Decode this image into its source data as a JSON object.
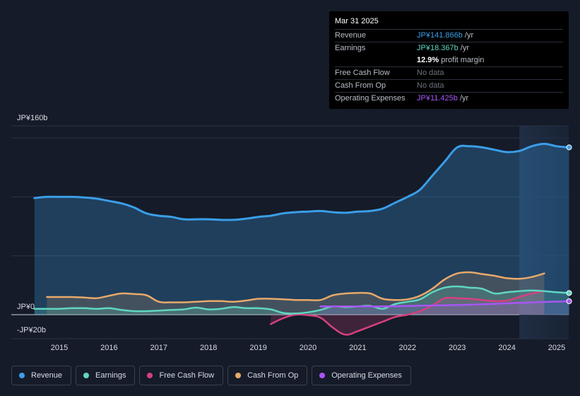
{
  "tooltip": {
    "date": "Mar 31 2025",
    "rows": [
      {
        "label": "Revenue",
        "value": "JP¥141.866b",
        "unit": "/yr",
        "color": "#3b9ee8"
      },
      {
        "label": "Earnings",
        "value": "JP¥18.367b",
        "unit": "/yr",
        "color": "#5fd7c0"
      },
      {
        "label": "",
        "value": "12.9%",
        "unit": "profit margin",
        "color": "#ffffff"
      },
      {
        "label": "Free Cash Flow",
        "value": "No data",
        "unit": "",
        "color": "#6b7280"
      },
      {
        "label": "Cash From Op",
        "value": "No data",
        "unit": "",
        "color": "#6b7280"
      },
      {
        "label": "Operating Expenses",
        "value": "JP¥11.425b",
        "unit": "/yr",
        "color": "#a855f7"
      }
    ]
  },
  "chart_data": {
    "type": "line",
    "title": "",
    "y_tick_labels": {
      "top": "JP¥160b",
      "zero": "JP¥0",
      "bottom": "-JP¥20b"
    },
    "ylim": [
      -20,
      160
    ],
    "xlim": [
      2014.5,
      2025.25
    ],
    "x_ticks": [
      "2015",
      "2016",
      "2017",
      "2018",
      "2019",
      "2020",
      "2021",
      "2022",
      "2023",
      "2024",
      "2025"
    ],
    "highlight_start": 2024.25,
    "series": [
      {
        "name": "Revenue",
        "color": "#3b9ee8",
        "fill": true,
        "x": [
          2014.5,
          2014.75,
          2015.0,
          2015.25,
          2015.5,
          2015.75,
          2016.0,
          2016.25,
          2016.5,
          2016.75,
          2017.0,
          2017.25,
          2017.5,
          2017.75,
          2018.0,
          2018.25,
          2018.5,
          2018.75,
          2019.0,
          2019.25,
          2019.5,
          2019.75,
          2020.0,
          2020.25,
          2020.5,
          2020.75,
          2021.0,
          2021.25,
          2021.5,
          2021.75,
          2022.0,
          2022.25,
          2022.5,
          2022.75,
          2023.0,
          2023.25,
          2023.5,
          2023.75,
          2024.0,
          2024.25,
          2024.5,
          2024.75,
          2025.0,
          2025.25
        ],
        "y": [
          99,
          100,
          100,
          100,
          99.5,
          98.5,
          96.5,
          94.5,
          91,
          86,
          84,
          83,
          81,
          81,
          81,
          80.5,
          80.5,
          81.5,
          83,
          84,
          86,
          87,
          87.5,
          88,
          87,
          86.5,
          87.5,
          88,
          90,
          95,
          100,
          106,
          118,
          130,
          142,
          143,
          142,
          140,
          138,
          139,
          143,
          145,
          143,
          142
        ]
      },
      {
        "name": "Earnings",
        "color": "#5fd7c0",
        "fill": true,
        "x": [
          2014.5,
          2014.75,
          2015.0,
          2015.25,
          2015.5,
          2015.75,
          2016.0,
          2016.25,
          2016.5,
          2016.75,
          2017.0,
          2017.25,
          2017.5,
          2017.75,
          2018.0,
          2018.25,
          2018.5,
          2018.75,
          2019.0,
          2019.25,
          2019.5,
          2019.75,
          2020.0,
          2020.25,
          2020.5,
          2020.75,
          2021.0,
          2021.25,
          2021.5,
          2021.75,
          2022.0,
          2022.25,
          2022.5,
          2022.75,
          2023.0,
          2023.25,
          2023.5,
          2023.75,
          2024.0,
          2024.25,
          2024.5,
          2024.75,
          2025.0,
          2025.25
        ],
        "y": [
          5,
          5,
          5,
          5.5,
          5.5,
          5,
          5.5,
          4,
          3,
          3,
          3.5,
          4,
          4.5,
          6,
          4.5,
          5,
          6.5,
          5.5,
          5.5,
          4.5,
          1.5,
          1,
          2,
          4,
          7,
          6.5,
          7,
          7.5,
          5,
          9,
          11,
          13,
          19,
          23,
          24,
          23,
          22,
          18,
          19,
          20,
          20.5,
          20,
          19,
          18.4
        ]
      },
      {
        "name": "Free Cash Flow",
        "color": "#d6407f",
        "fill": true,
        "x": [
          2019.25,
          2019.5,
          2019.75,
          2020.0,
          2020.25,
          2020.5,
          2020.75,
          2021.0,
          2021.25,
          2021.5,
          2021.75,
          2022.0,
          2022.25,
          2022.5,
          2022.75,
          2023.0,
          2023.25,
          2023.5,
          2023.75,
          2024.0,
          2024.25,
          2024.5,
          2024.75
        ],
        "y": [
          -8,
          -3,
          0,
          -0.5,
          -2.5,
          -11,
          -17,
          -14,
          -10,
          -6,
          -2,
          0,
          3,
          8,
          14,
          14,
          13.5,
          12.5,
          11.5,
          12,
          15,
          18,
          20
        ]
      },
      {
        "name": "Cash From Op",
        "color": "#e8a96a",
        "fill": true,
        "x": [
          2014.75,
          2015.0,
          2015.25,
          2015.5,
          2015.75,
          2016.0,
          2016.25,
          2016.5,
          2016.75,
          2017.0,
          2017.25,
          2017.5,
          2017.75,
          2018.0,
          2018.25,
          2018.5,
          2018.75,
          2019.0,
          2019.25,
          2019.5,
          2019.75,
          2020.0,
          2020.25,
          2020.5,
          2020.75,
          2021.0,
          2021.25,
          2021.5,
          2021.75,
          2022.0,
          2022.25,
          2022.5,
          2022.75,
          2023.0,
          2023.25,
          2023.5,
          2023.75,
          2024.0,
          2024.25,
          2024.5,
          2024.75
        ],
        "y": [
          15,
          15,
          15,
          14.5,
          14,
          16,
          18,
          17.5,
          16.5,
          11,
          10.5,
          10.5,
          11,
          11.5,
          11.5,
          11,
          12,
          13.5,
          13.5,
          13,
          12.5,
          12.5,
          12.5,
          16.5,
          18,
          18.5,
          18,
          13.5,
          12.5,
          13,
          16,
          22,
          30,
          35,
          36,
          34.5,
          33,
          31,
          30.5,
          32,
          35
        ]
      },
      {
        "name": "Operating Expenses",
        "color": "#a855f7",
        "fill": true,
        "x": [
          2020.25,
          2020.5,
          2020.75,
          2021.0,
          2021.25,
          2021.5,
          2021.75,
          2022.0,
          2022.25,
          2022.5,
          2022.75,
          2023.0,
          2023.25,
          2023.5,
          2023.75,
          2024.0,
          2024.25,
          2024.5,
          2024.75,
          2025.0,
          2025.25
        ],
        "y": [
          7,
          7,
          7,
          7,
          7,
          7,
          7.2,
          7.4,
          7.6,
          7.8,
          8,
          8.2,
          8.5,
          8.8,
          9.2,
          9.6,
          10,
          10.4,
          10.8,
          11.1,
          11.4
        ]
      }
    ]
  },
  "legend": [
    {
      "label": "Revenue",
      "color": "#3b9ee8"
    },
    {
      "label": "Earnings",
      "color": "#5fd7c0"
    },
    {
      "label": "Free Cash Flow",
      "color": "#d6407f"
    },
    {
      "label": "Cash From Op",
      "color": "#e8a96a"
    },
    {
      "label": "Operating Expenses",
      "color": "#a855f7"
    }
  ]
}
